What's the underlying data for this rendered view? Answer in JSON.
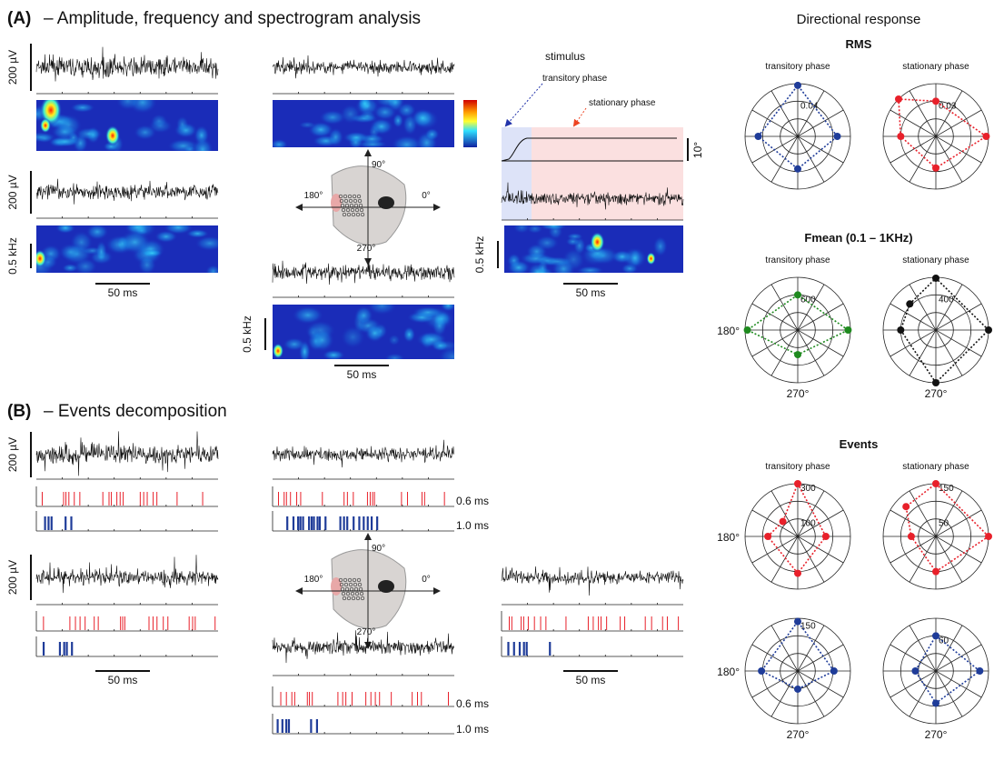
{
  "panel_a": {
    "label": "(A)",
    "title": "– Amplitude, frequency and spectrogram analysis",
    "amplitude_scales": [
      "200 µV",
      "200 µV"
    ],
    "frequency_scales": [
      "0.5 kHz",
      "0.5 kHz",
      "0.5 kHz"
    ],
    "time_scales": [
      "50 ms",
      "50 ms",
      "50 ms"
    ],
    "direction_labels": [
      "90°",
      "180°",
      "0°",
      "270°"
    ],
    "stimulus": {
      "title": "stimulus",
      "transitory": "transitory phase",
      "stationary": "stationary phase",
      "angle_scale": "10°"
    }
  },
  "panel_b": {
    "label": "(B)",
    "title": "– Events decomposition",
    "amplitude_scales": [
      "200 µV",
      "200 µV"
    ],
    "time_scales": [
      "50 ms",
      "50 ms"
    ],
    "event_widths_top": [
      "0.6 ms",
      "1.0 ms"
    ],
    "event_widths_bottom": [
      "0.6 ms",
      "1.0 ms"
    ],
    "direction_labels": [
      "90°",
      "180°",
      "0°",
      "270°"
    ]
  },
  "directional_response": {
    "title": "Directional response",
    "groups": [
      {
        "title": "RMS",
        "plots": [
          {
            "phase": "transitory phase",
            "color": "#1f3c99",
            "angles": [
              0,
              90,
              180,
              270
            ],
            "values": [
              0.045,
              0.058,
              0.045,
              0.037
            ],
            "rlim": [
              0,
              0.06
            ],
            "rticks": [
              {
                "value": 0.04,
                "label": "0.04"
              }
            ]
          },
          {
            "phase": "stationary phase",
            "color": "#e8202a",
            "angles": [
              0,
              90,
              135,
              180,
              270
            ],
            "values": [
              0.043,
              0.03,
              0.045,
              0.03,
              0.027
            ],
            "rlim": [
              0,
              0.045
            ],
            "rticks": [
              {
                "value": 0.03,
                "label": "0.03"
              }
            ]
          }
        ]
      },
      {
        "title": "Fmean (0.1 – 1KHz)",
        "plots": [
          {
            "phase": "transitory phase",
            "color": "#1e8a1e",
            "angles": [
              0,
              90,
              180,
              270
            ],
            "values": [
              860,
              600,
              860,
              420
            ],
            "rlim": [
              0,
              900
            ],
            "rticks": [
              600
            ],
            "left_label": "180°",
            "bottom_label": "270°"
          },
          {
            "phase": "stationary phase",
            "color": "#111111",
            "angles": [
              0,
              90,
              135,
              180,
              270
            ],
            "values": [
              600,
              590,
              420,
              400,
              600
            ],
            "rlim": [
              0,
              600
            ],
            "rticks": [
              400
            ],
            "bottom_label": "270°"
          }
        ]
      },
      {
        "title": "Events",
        "plots": [
          {
            "phase": "transitory phase",
            "color": "#e8202a",
            "angles": [
              0,
              90,
              135,
              180,
              270
            ],
            "values": [
              160,
              300,
              120,
              170,
              210
            ],
            "rlim": [
              0,
              300
            ],
            "rticks": [
              100,
              300
            ],
            "left_label": "180°"
          },
          {
            "phase": "stationary phase",
            "color": "#e8202a",
            "angles": [
              0,
              90,
              135,
              180,
              270
            ],
            "values": [
              150,
              150,
              120,
              70,
              100
            ],
            "rlim": [
              0,
              150
            ],
            "rticks": [
              50,
              150
            ]
          },
          {
            "color": "#1f3c99",
            "angles": [
              0,
              90,
              180,
              270
            ],
            "values": [
              110,
              150,
              110,
              55
            ],
            "rlim": [
              0,
              160
            ],
            "rticks": [
              150
            ],
            "left_label": "180°",
            "bottom_label": "270°"
          },
          {
            "color": "#1f3c99",
            "angles": [
              0,
              90,
              180,
              270
            ],
            "values": [
              75,
              60,
              35,
              55
            ],
            "rlim": [
              0,
              90
            ],
            "rticks": [
              60
            ],
            "bottom_label": "270°"
          }
        ]
      }
    ]
  }
}
